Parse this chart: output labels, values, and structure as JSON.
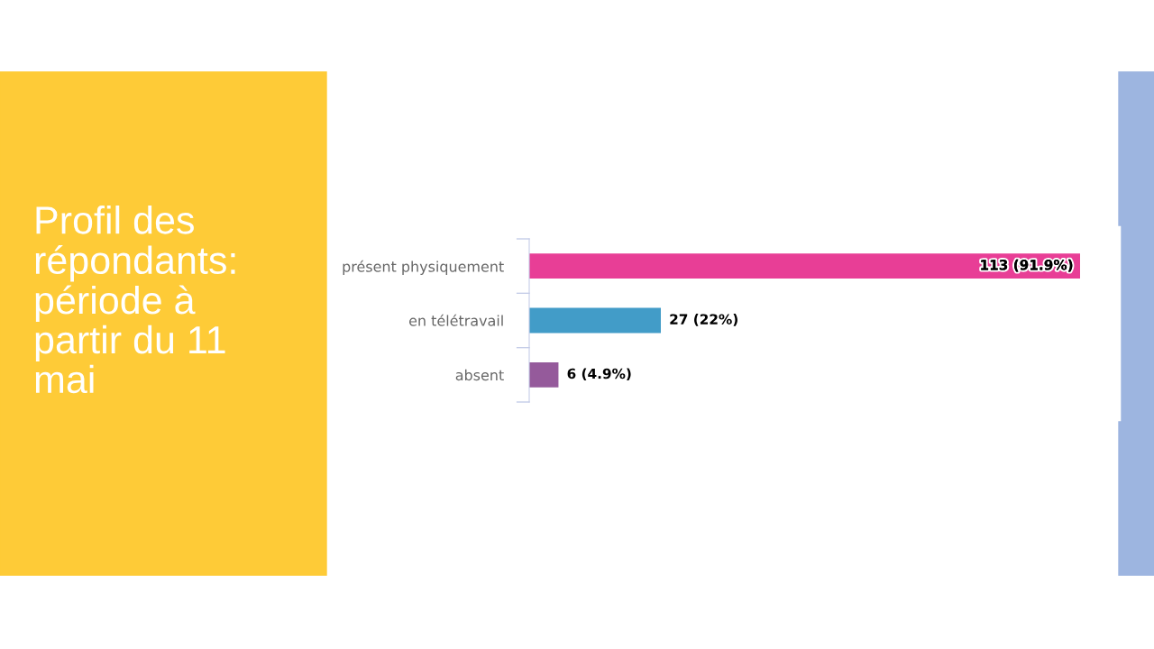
{
  "chart_data": {
    "type": "bar",
    "orientation": "horizontal",
    "title": "Profil des répondants: période à partir du 11 mai",
    "categories": [
      "présent physiquement",
      "en télétravail",
      "absent"
    ],
    "values": [
      113,
      27,
      6
    ],
    "colors": [
      "#e83e96",
      "#429cc8",
      "#955a9b"
    ],
    "value_labels": [
      "113 (91.9%)",
      "27 (22%)",
      "6 (4.9%)"
    ],
    "grid": false,
    "legend": false
  }
}
